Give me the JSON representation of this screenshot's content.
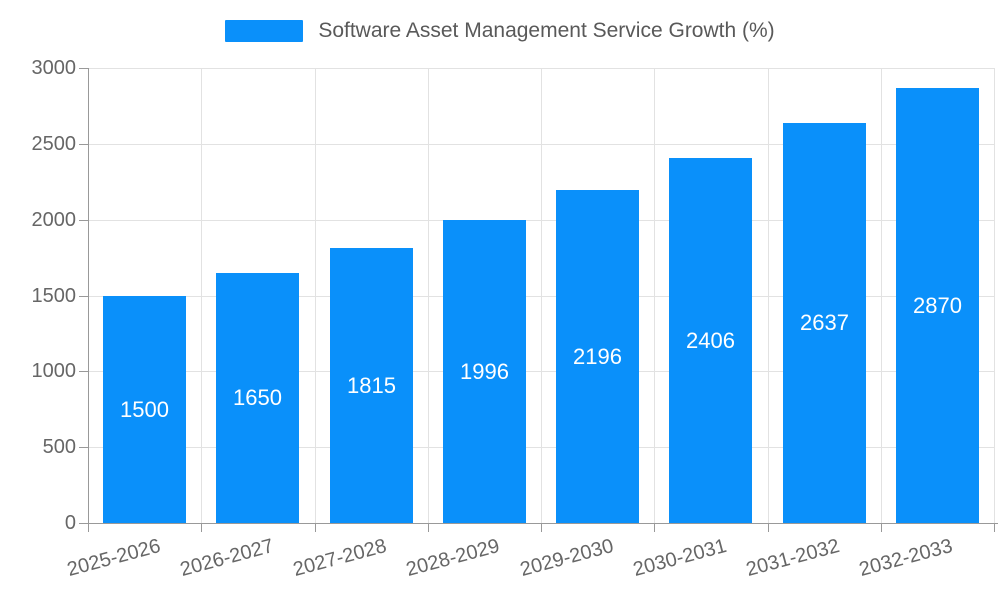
{
  "legend": {
    "swatch_color": "#0a90fa",
    "label": "Software Asset Management Service Growth (%)"
  },
  "chart_data": {
    "type": "bar",
    "title": "Software Asset Management Service Growth (%)",
    "series_name": "Software Asset Management Service Growth (%)",
    "categories": [
      "2025-2026",
      "2026-2027",
      "2027-2028",
      "2028-2029",
      "2029-2030",
      "2030-2031",
      "2031-2032",
      "2032-2033"
    ],
    "values": [
      1500,
      1650,
      1815,
      1996,
      2196,
      2406,
      2637,
      2870
    ],
    "xlabel": "",
    "ylabel": "",
    "ylim": [
      0,
      3000
    ],
    "yticks": [
      0,
      500,
      1000,
      1500,
      2000,
      2500,
      3000
    ],
    "grid": true,
    "legend_position": "top-center",
    "x_label_rotation_deg": -15,
    "value_labels": "inside-center-white"
  },
  "colors": {
    "bar": "#0a90fa",
    "grid": "#e2e2e2",
    "axis": "#999999",
    "tick_text": "#666666",
    "title_text": "#595959",
    "value_label": "#ffffff",
    "background": "#ffffff"
  }
}
